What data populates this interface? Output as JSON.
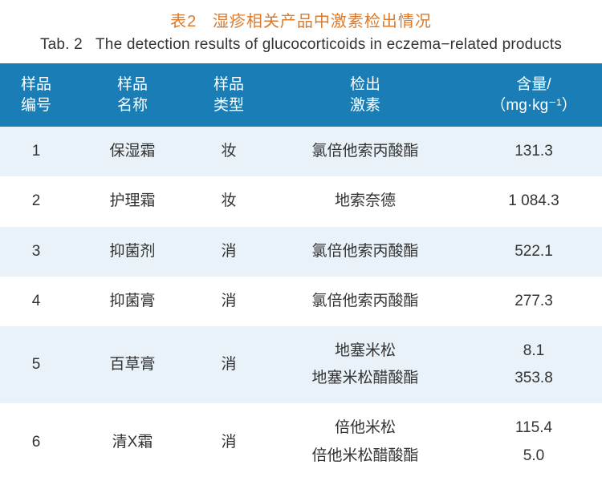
{
  "caption_cn_prefix": "表2",
  "caption_cn_title": "湿疹相关产品中激素检出情况",
  "caption_en_prefix": "Tab. 2",
  "caption_en_title": "The detection results of glucocorticoids in eczema−related products",
  "caption_color": "#d97a2e",
  "headers": {
    "id_l1": "样品",
    "id_l2": "编号",
    "name_l1": "样品",
    "name_l2": "名称",
    "type_l1": "样品",
    "type_l2": "类型",
    "hormone_l1": "检出",
    "hormone_l2": "激素",
    "amount_l1": "含量/",
    "amount_l2": "（mg·kg⁻¹）"
  },
  "header_bg": "#1a7db5",
  "header_fg": "#ffffff",
  "row_colors": {
    "odd": "#e9f2f8",
    "even": "#ffffff"
  },
  "rows": [
    {
      "id": "1",
      "name": "保湿霜",
      "type": "妆",
      "hormone": "氯倍他索丙酸酯",
      "amount": "131.3"
    },
    {
      "id": "2",
      "name": "护理霜",
      "type": "妆",
      "hormone": "地索奈德",
      "amount": "1 084.3"
    },
    {
      "id": "3",
      "name": "抑菌剂",
      "type": "消",
      "hormone": "氯倍他索丙酸酯",
      "amount": "522.1"
    },
    {
      "id": "4",
      "name": "抑菌膏",
      "type": "消",
      "hormone": "氯倍他索丙酸酯",
      "amount": "277.3"
    },
    {
      "id": "5",
      "name": "百草膏",
      "type": "消",
      "hormone_a": "地塞米松",
      "amount_a": "8.1",
      "hormone_b": "地塞米松醋酸酯",
      "amount_b": "353.8"
    },
    {
      "id": "6",
      "name": "清X霜",
      "type": "消",
      "hormone_a": "倍他米松",
      "amount_a": "115.4",
      "hormone_b": "倍他米松醋酸酯",
      "amount_b": "5.0"
    }
  ],
  "font_sizes": {
    "caption": 20,
    "header": 19,
    "body": 19
  }
}
